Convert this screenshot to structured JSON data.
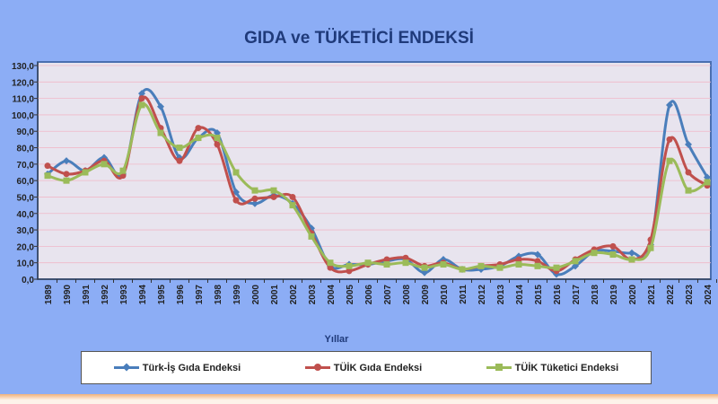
{
  "chart_data": {
    "type": "line",
    "title": "GIDA ve TÜKETİCİ ENDEKSİ",
    "xlabel": "Yıllar",
    "ylabel": "",
    "ylim": [
      0,
      130
    ],
    "yticks": [
      "0,0",
      "10,0",
      "20,0",
      "30,0",
      "40,0",
      "50,0",
      "60,0",
      "70,0",
      "80,0",
      "90,0",
      "100,0",
      "110,0",
      "120,0",
      "130,0"
    ],
    "grid": true,
    "legend": "bottom",
    "categories": [
      "1989",
      "1990",
      "1991",
      "1992",
      "1993",
      "1994",
      "1995",
      "1996",
      "1997",
      "1998",
      "1999",
      "2000",
      "2001",
      "2002",
      "2003",
      "2004",
      "2005",
      "2006",
      "2007",
      "2008",
      "2009",
      "2010",
      "2011",
      "2012",
      "2013",
      "2014",
      "2015",
      "2016",
      "2017",
      "2018",
      "2019",
      "2020",
      "2021",
      "2022",
      "2023",
      "2024"
    ],
    "series": [
      {
        "name": "Türk-İş Gıda Endeksi",
        "color": "#4a7ebb",
        "marker": "diamond",
        "values": [
          64,
          72,
          66,
          74,
          64,
          113,
          105,
          74,
          86,
          89,
          53,
          46,
          51,
          46,
          31,
          8,
          9,
          9,
          11,
          12,
          4,
          12,
          6,
          6,
          8,
          14,
          15,
          3,
          8,
          17,
          17,
          16,
          21,
          106,
          82,
          62
        ]
      },
      {
        "name": "TÜİK Gıda Endeksi",
        "color": "#c0504d",
        "marker": "circle",
        "values": [
          69,
          64,
          66,
          72,
          63,
          110,
          92,
          72,
          92,
          82,
          48,
          49,
          50,
          50,
          28,
          7,
          5,
          9,
          12,
          13,
          8,
          10,
          6,
          8,
          9,
          12,
          11,
          5,
          12,
          18,
          20,
          12,
          24,
          85,
          65,
          57
        ]
      },
      {
        "name": "TÜİK Tüketici Endeksi",
        "color": "#9bbb59",
        "marker": "square",
        "values": [
          63,
          60,
          65,
          70,
          66,
          106,
          89,
          80,
          86,
          86,
          65,
          54,
          54,
          45,
          26,
          10,
          8,
          10,
          9,
          10,
          7,
          9,
          6,
          8,
          7,
          9,
          8,
          7,
          11,
          16,
          15,
          12,
          19,
          72,
          54,
          59
        ]
      }
    ]
  }
}
